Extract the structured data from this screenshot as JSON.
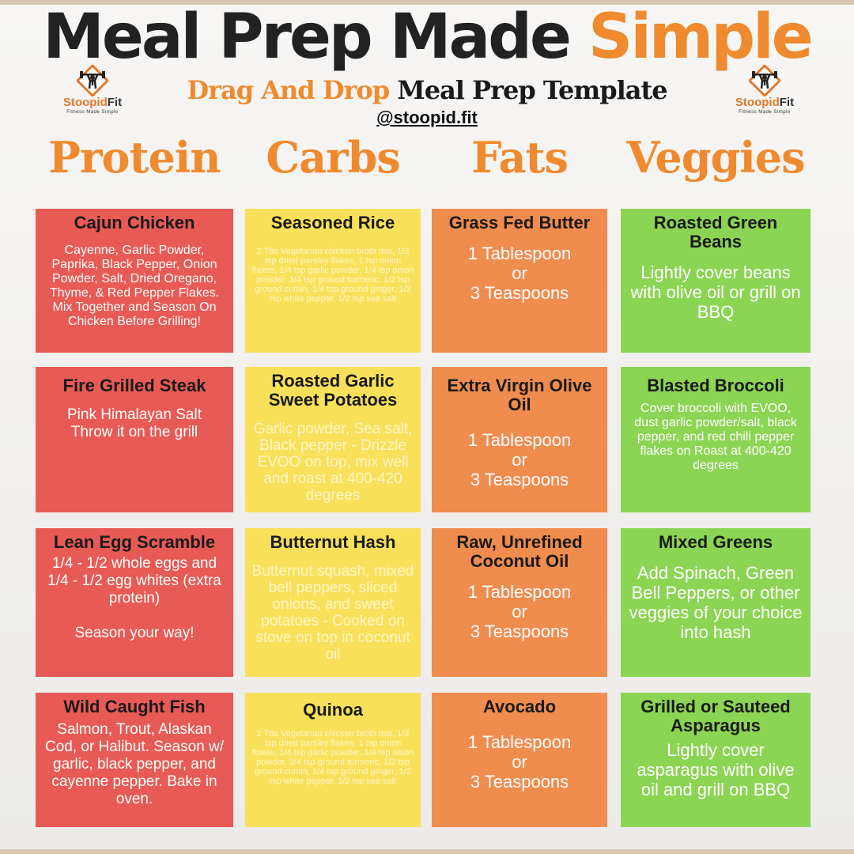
{
  "header": {
    "title_dark": "Meal Prep Made",
    "title_accent": "Simple",
    "subtitle_accent": "Drag And Drop",
    "subtitle_dark": "Meal Prep Template",
    "handle": "@stoopid.fit"
  },
  "logo": {
    "brand_part1": "Stoopid",
    "brand_part2": "Fit",
    "tagline": "Fitness Made Simple"
  },
  "columns": [
    "Protein",
    "Carbs",
    "Fats",
    "Veggies"
  ],
  "colors": {
    "protein": "#e85a55",
    "carbs": "#f9e05a",
    "fats": "#ef8c4e",
    "veggies": "#8cd453",
    "accent": "#ef8a2e"
  },
  "rows": [
    {
      "protein": {
        "name": "Cajun Chicken",
        "desc": "Cayenne, Garlic Powder, Paprika, Black Pepper, Onion Powder, Salt, Dried Oregano, Thyme, & Red Pepper Flakes.\nMix Together and Season On Chicken Before Grilling!"
      },
      "carbs": {
        "name": "Seasoned Rice",
        "desc": "2 Tbs Vegetarian chicken broth mix, 1/2 tsp dried parsley flakes, 1 tsp onion flakes, 1/4 tsp garlic powder, 1/4 tsp onion powder, 3/4 tsp ground turmeric, 1/2 tsp ground cumin, 1/4 tsp ground ginger, 1/2 tsp white pepper, 1/2 tsp sea salt"
      },
      "fats": {
        "name": "Grass Fed Butter",
        "desc": "1 Tablespoon\nor\n3 Teaspoons"
      },
      "veggies": {
        "name": "Roasted Green Beans",
        "desc": "Lightly cover beans with olive oil or grill on BBQ"
      }
    },
    {
      "protein": {
        "name": "Fire Grilled Steak",
        "desc": "Pink Himalayan Salt\nThrow it on the grill"
      },
      "carbs": {
        "name": "Roasted Garlic Sweet Potatoes",
        "desc": "Garlic powder, Sea salt, Black pepper - Drizzle EVOO on top, mix well and roast at 400-420 degrees"
      },
      "fats": {
        "name": "Extra Virgin Olive Oil",
        "desc": "1 Tablespoon\nor\n3 Teaspoons"
      },
      "veggies": {
        "name": "Blasted Broccoli",
        "desc": "Cover broccoli with EVOO, dust garlic powder/salt, black pepper, and red chili pepper flakes on Roast at 400-420 degrees"
      }
    },
    {
      "protein": {
        "name": "Lean Egg Scramble",
        "desc": "1/4 - 1/2 whole eggs and 1/4 - 1/2 egg whites (extra protein)\n\nSeason your way!"
      },
      "carbs": {
        "name": "Butternut Hash",
        "desc": "Butternut squash, mixed bell peppers, sliced onions, and sweet potatoes - Cooked on stove on top in coconut oil"
      },
      "fats": {
        "name": "Raw, Unrefined Coconut Oil",
        "desc": "1 Tablespoon\nor\n3 Teaspoons"
      },
      "veggies": {
        "name": "Mixed Greens",
        "desc": "Add Spinach, Green Bell Peppers, or other veggies of your choice into hash"
      }
    },
    {
      "protein": {
        "name": "Wild Caught Fish",
        "desc": "Salmon, Trout, Alaskan Cod, or Halibut. Season w/ garlic, black pepper, and cayenne pepper. Bake in oven."
      },
      "carbs": {
        "name": "Quinoa",
        "desc": "2 Tbs Vegetarian chicken broth mix, 1/2 tsp dried parsley flakes, 1 tsp onion flakes, 1/4 tsp garlic powder, 1/4 tsp onion powder, 3/4 tsp ground turmeric, 1/2 tsp ground cumin, 1/4 tsp ground ginger, 1/2 tsp white pepper, 1/2 tsp sea salt"
      },
      "fats": {
        "name": "Avocado",
        "desc": "1 Tablespoon\nor\n3 Teaspoons"
      },
      "veggies": {
        "name": "Grilled or Sauteed Asparagus",
        "desc": "Lightly cover asparagus with olive oil and grill on BBQ"
      }
    }
  ]
}
